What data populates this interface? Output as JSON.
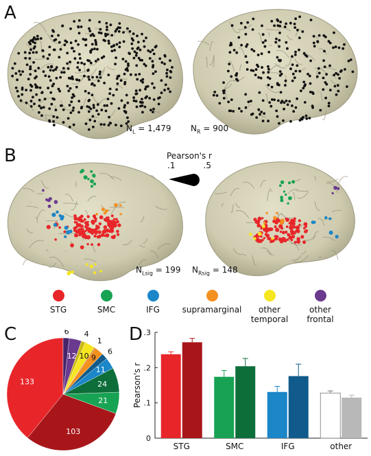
{
  "panels": {
    "a": "A",
    "b": "B",
    "c": "C",
    "d": "D"
  },
  "panel_a": {
    "nl_label": "N",
    "nl_sub": "L",
    "nl_value": "= 1,479",
    "nr_label": "N",
    "nr_sub": "R",
    "nr_value": "= 900"
  },
  "panel_b": {
    "nl_label": "N",
    "nl_sub": "Lsig",
    "nl_value": "= 199",
    "nr_label": "N",
    "nr_sub": "Rsig",
    "nr_value": "= 148",
    "pearson_title": "Pearson's r",
    "pearson_ticks": [
      ".1",
      ".5"
    ]
  },
  "legend": [
    {
      "label": "STG",
      "color": "#e8262a"
    },
    {
      "label": "SMC",
      "color": "#17a353"
    },
    {
      "label": "IFG",
      "color": "#1b86c8"
    },
    {
      "label": "supramarginal",
      "color": "#f39020"
    },
    {
      "label": "other\ntemporal",
      "color": "#f5e61f"
    },
    {
      "label": "other\nfrontal",
      "color": "#6a3a8f"
    }
  ],
  "colors": {
    "brain": "#d6d3b8",
    "brain_shadow": "#a9a58a",
    "gyrus": "#8e8a72"
  },
  "chart_data": [
    {
      "type": "pie",
      "values": [
        133,
        103,
        21,
        24,
        11,
        6,
        9,
        1,
        10,
        4,
        12,
        6
      ],
      "labels": [
        "133",
        "103",
        "21",
        "24",
        "11",
        "6",
        "9",
        "1",
        "10",
        "4",
        "12",
        "6"
      ],
      "colors": [
        "#e8262a",
        "#a8161a",
        "#17a353",
        "#0d6e3a",
        "#1b86c8",
        "#105b8c",
        "#f39020",
        "#c36a10",
        "#f5e61f",
        "#cdbb10",
        "#6a3a8f",
        "#46256a"
      ]
    },
    {
      "type": "bar",
      "categories": [
        "STG",
        "SMC",
        "IFG",
        "other"
      ],
      "series": [
        {
          "values": [
            0.238,
            0.174,
            0.131,
            0.128
          ],
          "errors": [
            0.007,
            0.018,
            0.016,
            0.006
          ],
          "colors": [
            "#e8262a",
            "#17a353",
            "#1b86c8",
            "#ffffff"
          ]
        },
        {
          "values": [
            0.272,
            0.204,
            0.176,
            0.115
          ],
          "errors": [
            0.011,
            0.022,
            0.034,
            0.007
          ],
          "colors": [
            "#a8161a",
            "#0d6e3a",
            "#105b8c",
            "#b8b8b8"
          ]
        }
      ],
      "ylabel": "Pearson's r",
      "ylim": [
        0,
        0.3
      ],
      "yticks": [
        0,
        0.1,
        0.2,
        0.3
      ],
      "ytick_labels": [
        "0",
        ".1",
        ".2",
        ".3"
      ]
    }
  ]
}
